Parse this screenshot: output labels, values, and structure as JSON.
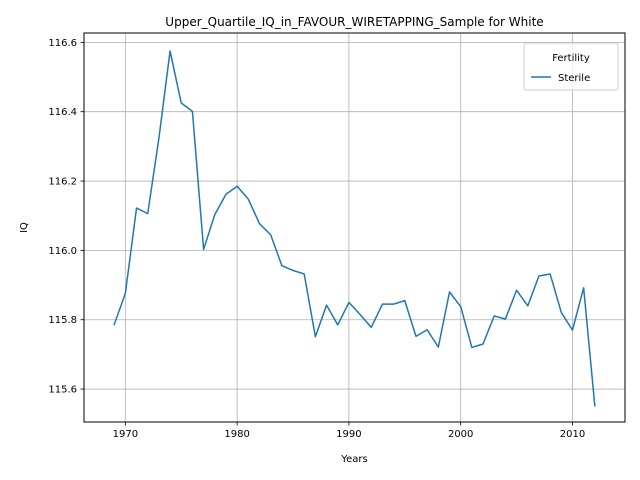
{
  "chart_data": {
    "type": "line",
    "title": "Upper_Quartile_IQ_in_FAVOUR_WIRETAPPING_Sample for White",
    "xlabel": "Years",
    "ylabel": "IQ",
    "xlim": [
      1966.3,
      2014.7
    ],
    "ylim": [
      115.505,
      116.627
    ],
    "xticks": [
      1970,
      1980,
      1990,
      2000,
      2010
    ],
    "yticks": [
      115.6,
      115.8,
      116.0,
      116.2,
      116.4,
      116.6
    ],
    "xtick_labels": [
      "1970",
      "1980",
      "1990",
      "2000",
      "2010"
    ],
    "ytick_labels": [
      "115.6",
      "115.8",
      "116.0",
      "116.2",
      "116.4",
      "116.6"
    ],
    "grid": true,
    "legend": {
      "title": "Fertility",
      "placement": "top-right",
      "entries": [
        "Sterile"
      ]
    },
    "series": [
      {
        "name": "Sterile",
        "color": "#1f77b4",
        "x": [
          1969,
          1970,
          1971,
          1972,
          1973,
          1974,
          1975,
          1976,
          1977,
          1978,
          1979,
          1980,
          1981,
          1982,
          1983,
          1984,
          1985,
          1986,
          1987,
          1988,
          1989,
          1990,
          1991,
          1992,
          1993,
          1994,
          1995,
          1996,
          1997,
          1998,
          1999,
          2000,
          2001,
          2002,
          2003,
          2004,
          2005,
          2006,
          2007,
          2008,
          2009,
          2010,
          2011,
          2012
        ],
        "values": [
          115.786,
          115.876,
          116.122,
          116.106,
          116.323,
          116.575,
          116.425,
          116.401,
          116.003,
          116.103,
          116.162,
          116.185,
          116.148,
          116.077,
          116.045,
          115.956,
          115.942,
          115.932,
          115.751,
          115.842,
          115.785,
          115.85,
          115.815,
          115.778,
          115.845,
          115.845,
          115.855,
          115.752,
          115.771,
          115.721,
          115.88,
          115.838,
          115.72,
          115.73,
          115.811,
          115.802,
          115.885,
          115.84,
          115.926,
          115.932,
          115.821,
          115.77,
          115.892,
          115.552
        ]
      }
    ]
  }
}
